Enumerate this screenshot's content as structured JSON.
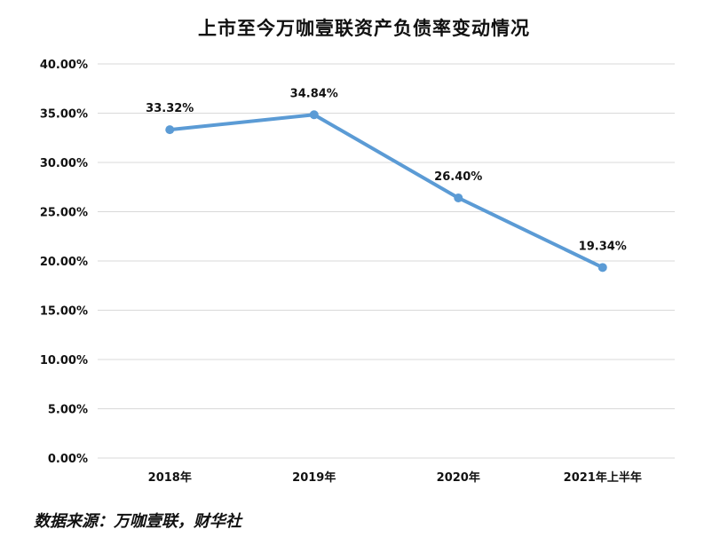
{
  "title": "上市至今万咖壹联资产负债率变动情况",
  "source": "数据来源：万咖壹联，财华社",
  "colors": {
    "line": "#5b9bd5",
    "grid": "#d9d9d9",
    "text": "#111111"
  },
  "chart_data": {
    "type": "line",
    "title": "上市至今万咖壹联资产负债率变动情况",
    "categories": [
      "2018年",
      "2019年",
      "2020年",
      "2021年上半年"
    ],
    "values": [
      33.32,
      34.84,
      26.4,
      19.34
    ],
    "data_labels": [
      "33.32%",
      "34.84%",
      "26.40%",
      "19.34%"
    ],
    "y_ticks": [
      "0.00%",
      "5.00%",
      "10.00%",
      "15.00%",
      "20.00%",
      "25.00%",
      "30.00%",
      "35.00%",
      "40.00%"
    ],
    "ylim": [
      0,
      40
    ],
    "xlabel": "",
    "ylabel": "",
    "grid": true,
    "legend": "none"
  }
}
